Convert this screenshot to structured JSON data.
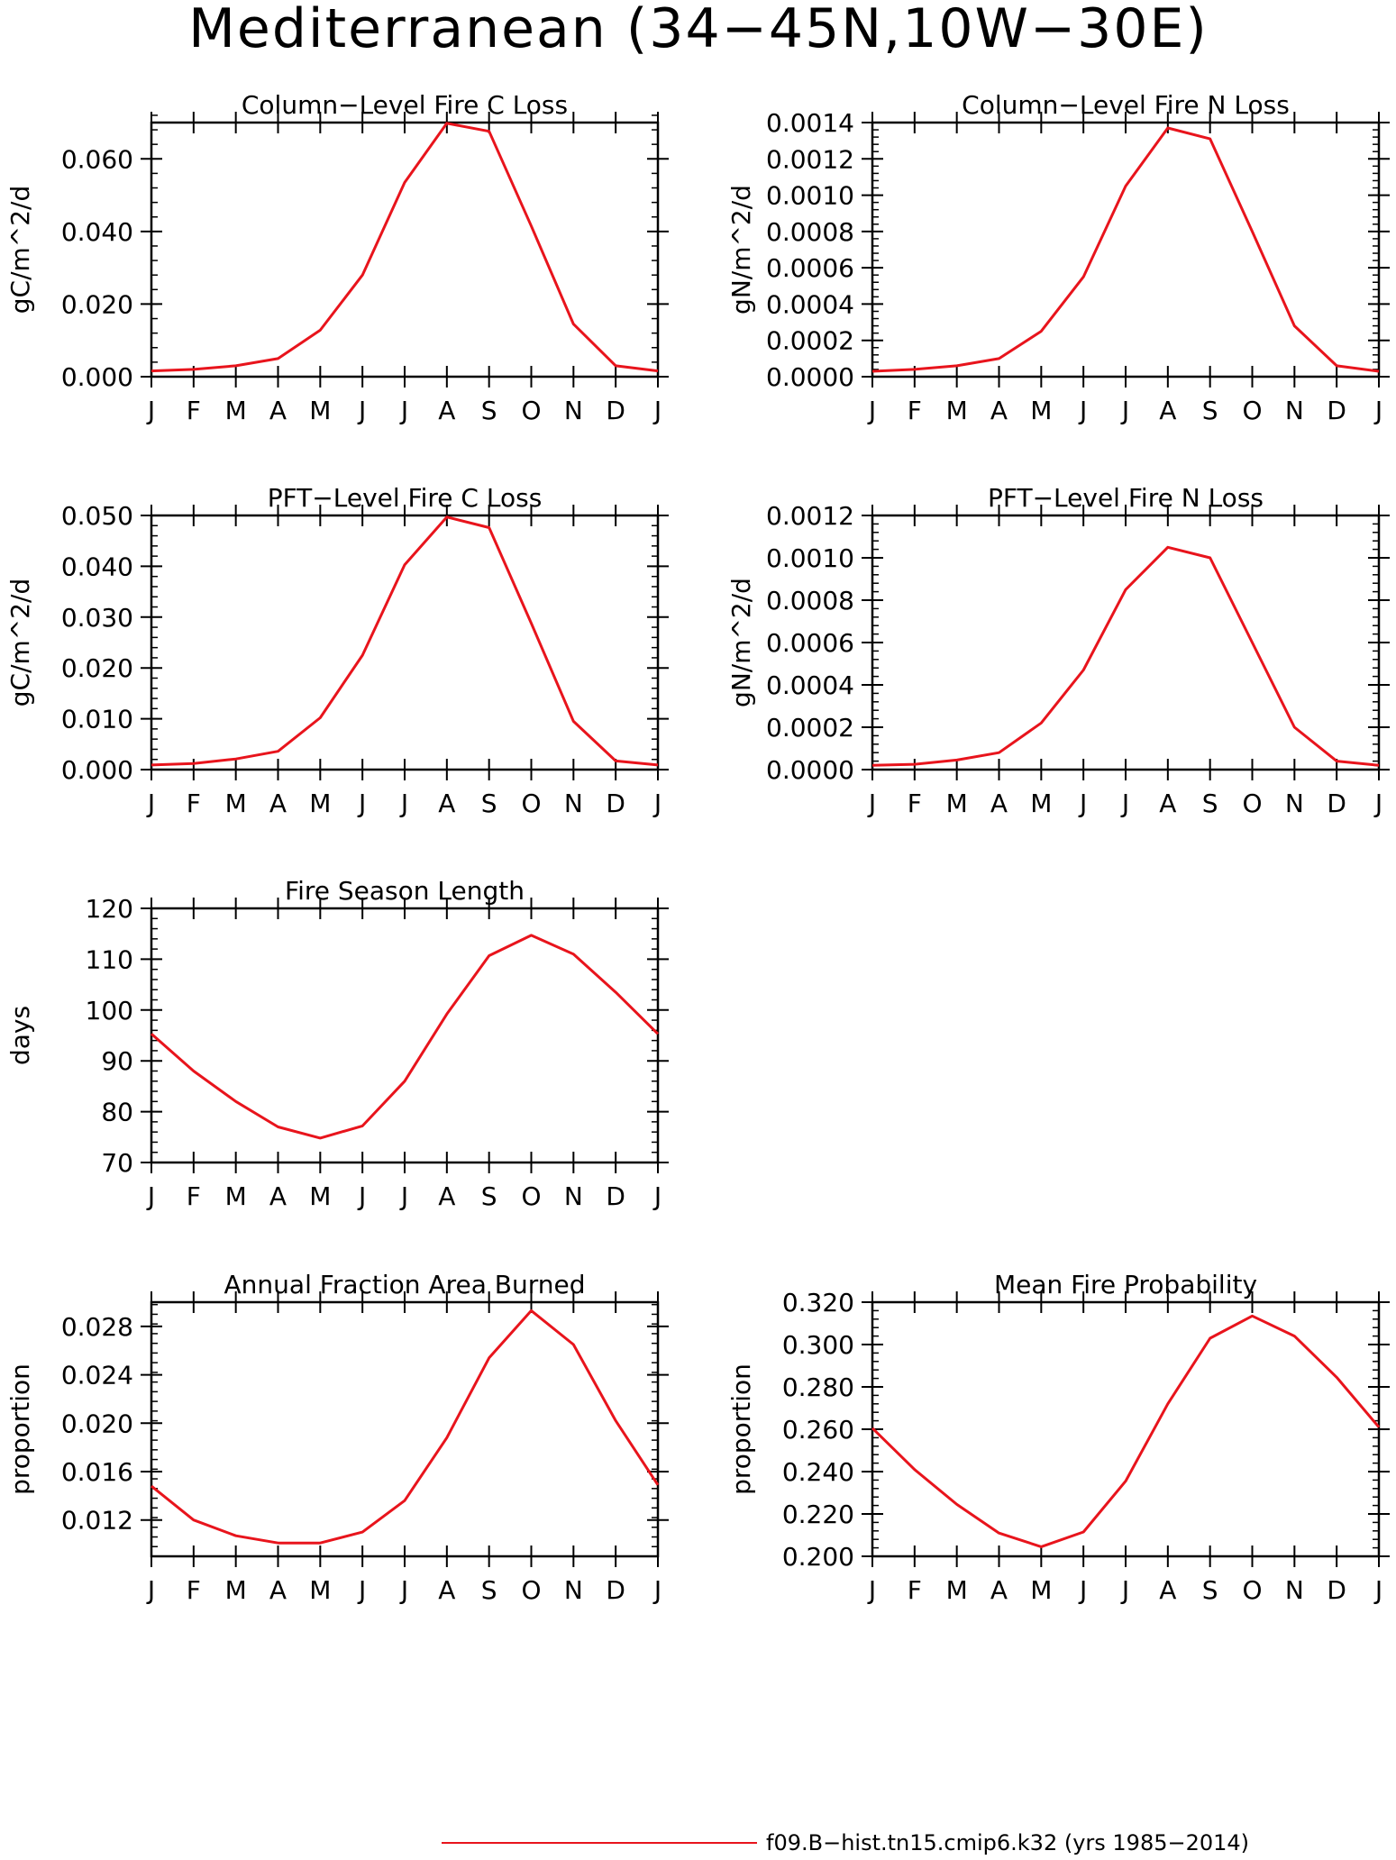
{
  "figure": {
    "title": "Mediterranean (34−45N,10W−30E)",
    "series_color": "#e8141c",
    "legend_label": "f09.B−hist.tn15.cmip6.k32 (yrs 1985−2014)"
  },
  "chart_data": [
    {
      "id": "col-c",
      "type": "line",
      "title": "Column−Level Fire C Loss",
      "xlabel": "",
      "ylabel": "gC/m^2/d",
      "categories": [
        "J",
        "F",
        "M",
        "A",
        "M",
        "J",
        "J",
        "A",
        "S",
        "O",
        "N",
        "D",
        "J"
      ],
      "ylim": [
        0,
        0.07
      ],
      "yticks": [
        0.0,
        0.02,
        0.04,
        0.06
      ],
      "ytick_labels": [
        "0.000",
        "0.020",
        "0.040",
        "0.060"
      ],
      "yminor": 0.004,
      "series": [
        {
          "values": [
            0.0016,
            0.002,
            0.003,
            0.005,
            0.0128,
            0.028,
            0.0535,
            0.0698,
            0.0676,
            0.0415,
            0.0145,
            0.003,
            0.0016
          ]
        }
      ]
    },
    {
      "id": "col-n",
      "type": "line",
      "title": "Column−Level Fire N Loss",
      "xlabel": "",
      "ylabel": "gN/m^2/d",
      "categories": [
        "J",
        "F",
        "M",
        "A",
        "M",
        "J",
        "J",
        "A",
        "S",
        "O",
        "N",
        "D",
        "J"
      ],
      "ylim": [
        0,
        0.0014
      ],
      "yticks": [
        0.0,
        0.0002,
        0.0004,
        0.0006,
        0.0008,
        0.001,
        0.0012,
        0.0014
      ],
      "ytick_labels": [
        "0.0000",
        "0.0002",
        "0.0004",
        "0.0006",
        "0.0008",
        "0.0010",
        "0.0012",
        "0.0014"
      ],
      "yminor": 4e-05,
      "series": [
        {
          "values": [
            3e-05,
            4e-05,
            6e-05,
            0.0001,
            0.00025,
            0.00055,
            0.00105,
            0.00137,
            0.00131,
            0.0008,
            0.00028,
            6e-05,
            3e-05
          ]
        }
      ]
    },
    {
      "id": "pft-c",
      "type": "line",
      "title": "PFT−Level Fire C Loss",
      "xlabel": "",
      "ylabel": "gC/m^2/d",
      "categories": [
        "J",
        "F",
        "M",
        "A",
        "M",
        "J",
        "J",
        "A",
        "S",
        "O",
        "N",
        "D",
        "J"
      ],
      "ylim": [
        0,
        0.05
      ],
      "yticks": [
        0.0,
        0.01,
        0.02,
        0.03,
        0.04,
        0.05
      ],
      "ytick_labels": [
        "0.000",
        "0.010",
        "0.020",
        "0.030",
        "0.040",
        "0.050"
      ],
      "yminor": 0.002,
      "series": [
        {
          "values": [
            0.0009,
            0.0012,
            0.0021,
            0.0036,
            0.0102,
            0.0225,
            0.0403,
            0.0497,
            0.0476,
            0.0288,
            0.0095,
            0.0017,
            0.0009
          ]
        }
      ]
    },
    {
      "id": "pft-n",
      "type": "line",
      "title": "PFT−Level Fire N Loss",
      "xlabel": "",
      "ylabel": "gN/m^2/d",
      "categories": [
        "J",
        "F",
        "M",
        "A",
        "M",
        "J",
        "J",
        "A",
        "S",
        "O",
        "N",
        "D",
        "J"
      ],
      "ylim": [
        0,
        0.0012
      ],
      "yticks": [
        0.0,
        0.0002,
        0.0004,
        0.0006,
        0.0008,
        0.001,
        0.0012
      ],
      "ytick_labels": [
        "0.0000",
        "0.0002",
        "0.0004",
        "0.0006",
        "0.0008",
        "0.0010",
        "0.0012"
      ],
      "yminor": 4e-05,
      "series": [
        {
          "values": [
            2e-05,
            2.5e-05,
            4.5e-05,
            8e-05,
            0.00022,
            0.00047,
            0.00085,
            0.00105,
            0.001,
            0.0006,
            0.0002,
            4e-05,
            2e-05
          ]
        }
      ]
    },
    {
      "id": "season",
      "type": "line",
      "title": "Fire Season Length",
      "xlabel": "",
      "ylabel": "days",
      "categories": [
        "J",
        "F",
        "M",
        "A",
        "M",
        "J",
        "J",
        "A",
        "S",
        "O",
        "N",
        "D",
        "J"
      ],
      "ylim": [
        70,
        120
      ],
      "yticks": [
        70,
        80,
        90,
        100,
        110,
        120
      ],
      "ytick_labels": [
        "70",
        "80",
        "90",
        "100",
        "110",
        "120"
      ],
      "yminor": 2,
      "series": [
        {
          "values": [
            95.3,
            88,
            82,
            77,
            74.8,
            77.2,
            86,
            99.2,
            110.7,
            114.7,
            111,
            103.5,
            95.3
          ]
        }
      ]
    },
    {
      "id": "burned",
      "type": "line",
      "title": "Annual Fraction Area Burned",
      "xlabel": "",
      "ylabel": "proportion",
      "categories": [
        "J",
        "F",
        "M",
        "A",
        "M",
        "J",
        "J",
        "A",
        "S",
        "O",
        "N",
        "D",
        "J"
      ],
      "ylim": [
        0.009,
        0.03
      ],
      "yticks": [
        0.012,
        0.016,
        0.02,
        0.024,
        0.028
      ],
      "ytick_labels": [
        "0.012",
        "0.016",
        "0.020",
        "0.024",
        "0.028"
      ],
      "yminor": 0.0008,
      "series": [
        {
          "values": [
            0.0148,
            0.012,
            0.0107,
            0.0101,
            0.0101,
            0.011,
            0.0136,
            0.0188,
            0.0254,
            0.0293,
            0.0265,
            0.0202,
            0.0149
          ]
        }
      ]
    },
    {
      "id": "prob",
      "type": "line",
      "title": "Mean Fire Probability",
      "xlabel": "",
      "ylabel": "proportion",
      "categories": [
        "J",
        "F",
        "M",
        "A",
        "M",
        "J",
        "J",
        "A",
        "S",
        "O",
        "N",
        "D",
        "J"
      ],
      "ylim": [
        0.2,
        0.32
      ],
      "yticks": [
        0.2,
        0.22,
        0.24,
        0.26,
        0.28,
        0.3,
        0.32
      ],
      "ytick_labels": [
        "0.200",
        "0.220",
        "0.240",
        "0.260",
        "0.280",
        "0.300",
        "0.320"
      ],
      "yminor": 0.004,
      "series": [
        {
          "values": [
            0.2605,
            0.241,
            0.2245,
            0.211,
            0.2045,
            0.2115,
            0.2355,
            0.272,
            0.303,
            0.3135,
            0.304,
            0.2845,
            0.261
          ]
        }
      ]
    }
  ]
}
